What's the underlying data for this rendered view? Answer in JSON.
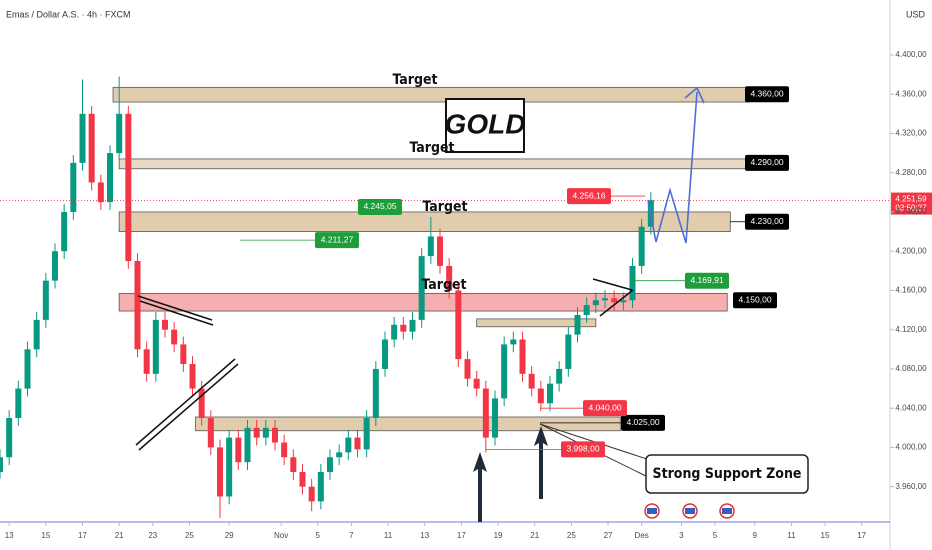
{
  "chart_data": {
    "type": "candlestick",
    "title": "Emas / Dollar A.S. · 4h · FXCM",
    "currency": "USD",
    "up_color": "#089981",
    "down_color": "#f23645",
    "xlim": [
      0,
      288
    ],
    "ylim": [
      3924,
      4456
    ],
    "xticks": [
      {
        "value": 3,
        "label": "13"
      },
      {
        "value": 15,
        "label": "15"
      },
      {
        "value": 27,
        "label": "17"
      },
      {
        "value": 39,
        "label": "21"
      },
      {
        "value": 50,
        "label": "23"
      },
      {
        "value": 62,
        "label": "25"
      },
      {
        "value": 75,
        "label": "29"
      },
      {
        "value": 92,
        "label": "Nov"
      },
      {
        "value": 104,
        "label": "5"
      },
      {
        "value": 115,
        "label": "7"
      },
      {
        "value": 127,
        "label": "11"
      },
      {
        "value": 139,
        "label": "13"
      },
      {
        "value": 151,
        "label": "17"
      },
      {
        "value": 163,
        "label": "19"
      },
      {
        "value": 175,
        "label": "21"
      },
      {
        "value": 187,
        "label": "25"
      },
      {
        "value": 199,
        "label": "27"
      },
      {
        "value": 210,
        "label": "Des"
      },
      {
        "value": 223,
        "label": "3"
      },
      {
        "value": 234,
        "label": "5"
      },
      {
        "value": 247,
        "label": "9"
      },
      {
        "value": 259,
        "label": "11"
      },
      {
        "value": 270,
        "label": "15"
      },
      {
        "value": 282,
        "label": "17"
      }
    ],
    "yticks": [
      {
        "value": 3960,
        "label": "3.960,00"
      },
      {
        "value": 4000,
        "label": "4.000,00"
      },
      {
        "value": 4040,
        "label": "4.040,00"
      },
      {
        "value": 4080,
        "label": "4.080,00"
      },
      {
        "value": 4120,
        "label": "4.120,00"
      },
      {
        "value": 4160,
        "label": "4.160,00"
      },
      {
        "value": 4200,
        "label": "4.200,00"
      },
      {
        "value": 4240,
        "label": "4.240,00"
      },
      {
        "value": 4280,
        "label": "4.280,00"
      },
      {
        "value": 4320,
        "label": "4.320,00"
      },
      {
        "value": 4360,
        "label": "4.360,00"
      },
      {
        "value": 4400,
        "label": "4.400,00"
      }
    ],
    "x": [
      0,
      3,
      6,
      9,
      12,
      15,
      18,
      21,
      24,
      27,
      30,
      33,
      36,
      39,
      42,
      45,
      48,
      51,
      54,
      57,
      60,
      63,
      66,
      69,
      72,
      75,
      78,
      81,
      84,
      87,
      90,
      93,
      96,
      99,
      102,
      105,
      108,
      111,
      114,
      117,
      120,
      123,
      126,
      129,
      132,
      135,
      138,
      141,
      144,
      147,
      150,
      153,
      156,
      159,
      162,
      165,
      168,
      171,
      174,
      177,
      180,
      183,
      186,
      189,
      192,
      195,
      198,
      201,
      204,
      207,
      210,
      213
    ],
    "candles": [
      [
        3975,
        3998,
        3968,
        3990
      ],
      [
        3990,
        4038,
        3982,
        4030
      ],
      [
        4030,
        4068,
        4022,
        4060
      ],
      [
        4060,
        4108,
        4052,
        4100
      ],
      [
        4100,
        4138,
        4092,
        4130
      ],
      [
        4130,
        4178,
        4122,
        4170
      ],
      [
        4170,
        4208,
        4162,
        4200
      ],
      [
        4200,
        4248,
        4192,
        4240
      ],
      [
        4240,
        4298,
        4232,
        4290
      ],
      [
        4290,
        4375,
        4282,
        4340
      ],
      [
        4340,
        4348,
        4262,
        4270
      ],
      [
        4270,
        4278,
        4242,
        4250
      ],
      [
        4250,
        4308,
        4242,
        4300
      ],
      [
        4300,
        4378,
        4292,
        4340
      ],
      [
        4340,
        4348,
        4182,
        4190
      ],
      [
        4190,
        4198,
        4092,
        4100
      ],
      [
        4100,
        4108,
        4067,
        4075
      ],
      [
        4075,
        4138,
        4067,
        4130
      ],
      [
        4130,
        4138,
        4112,
        4120
      ],
      [
        4120,
        4128,
        4097,
        4105
      ],
      [
        4105,
        4113,
        4077,
        4085
      ],
      [
        4085,
        4093,
        4052,
        4060
      ],
      [
        4060,
        4068,
        4022,
        4030
      ],
      [
        4030,
        4038,
        3992,
        4000
      ],
      [
        4000,
        4008,
        3928,
        3950
      ],
      [
        3950,
        4018,
        3942,
        4010
      ],
      [
        4010,
        4018,
        3977,
        3985
      ],
      [
        3985,
        4028,
        3977,
        4020
      ],
      [
        4020,
        4028,
        4002,
        4010
      ],
      [
        4010,
        4028,
        4002,
        4020
      ],
      [
        4020,
        4028,
        3997,
        4005
      ],
      [
        4005,
        4013,
        3982,
        3990
      ],
      [
        3990,
        3998,
        3967,
        3975
      ],
      [
        3975,
        3983,
        3952,
        3960
      ],
      [
        3960,
        3968,
        3935,
        3945
      ],
      [
        3945,
        3983,
        3937,
        3975
      ],
      [
        3975,
        3998,
        3967,
        3990
      ],
      [
        3990,
        4003,
        3982,
        3995
      ],
      [
        3995,
        4018,
        3987,
        4010
      ],
      [
        4010,
        4018,
        3990,
        3998
      ],
      [
        3998,
        4038,
        3990,
        4030
      ],
      [
        4030,
        4088,
        4022,
        4080
      ],
      [
        4080,
        4118,
        4072,
        4110
      ],
      [
        4110,
        4133,
        4102,
        4125
      ],
      [
        4125,
        4133,
        4110,
        4118
      ],
      [
        4118,
        4138,
        4110,
        4130
      ],
      [
        4130,
        4203,
        4122,
        4195
      ],
      [
        4195,
        4235,
        4187,
        4215
      ],
      [
        4215,
        4223,
        4177,
        4185
      ],
      [
        4185,
        4193,
        4152,
        4160
      ],
      [
        4160,
        4168,
        4082,
        4090
      ],
      [
        4090,
        4098,
        4062,
        4070
      ],
      [
        4070,
        4078,
        4052,
        4060
      ],
      [
        4060,
        4068,
        3995,
        4010
      ],
      [
        4010,
        4058,
        4002,
        4050
      ],
      [
        4050,
        4113,
        4042,
        4105
      ],
      [
        4105,
        4118,
        4097,
        4110
      ],
      [
        4110,
        4118,
        4067,
        4075
      ],
      [
        4075,
        4083,
        4052,
        4060
      ],
      [
        4060,
        4068,
        4037,
        4045
      ],
      [
        4045,
        4073,
        4037,
        4065
      ],
      [
        4065,
        4088,
        4057,
        4080
      ],
      [
        4080,
        4123,
        4072,
        4115
      ],
      [
        4115,
        4143,
        4107,
        4135
      ],
      [
        4135,
        4153,
        4127,
        4145
      ],
      [
        4145,
        4158,
        4137,
        4150
      ],
      [
        4150,
        4160,
        4142,
        4152
      ],
      [
        4152,
        4160,
        4140,
        4148
      ],
      [
        4148,
        4158,
        4140,
        4150
      ],
      [
        4150,
        4193,
        4142,
        4185
      ],
      [
        4185,
        4233,
        4177,
        4225
      ],
      [
        4225,
        4260,
        4217,
        4252
      ]
    ],
    "zones": [
      {
        "x": [
          37,
          245
        ],
        "y": [
          4352,
          4367
        ],
        "color": "#dcc3a0"
      },
      {
        "x": [
          39,
          245
        ],
        "y": [
          4284,
          4294
        ],
        "color": "#e6d4bb"
      },
      {
        "x": [
          39,
          239
        ],
        "y": [
          4220,
          4240
        ],
        "color": "#dcc3a0"
      },
      {
        "x": [
          39,
          238
        ],
        "y": [
          4139,
          4157
        ],
        "color": "#f4a0a0"
      },
      {
        "x": [
          64,
          203
        ],
        "y": [
          4017,
          4031
        ],
        "color": "#dcc3a0"
      },
      {
        "x": [
          156,
          195
        ],
        "y": [
          4123,
          4131
        ],
        "color": "#dcc3a0"
      }
    ],
    "price_tags": [
      {
        "label": "4.360,00",
        "value": 4360,
        "color": "#000000"
      },
      {
        "label": "4.290,00",
        "value": 4290,
        "color": "#000000"
      },
      {
        "label": "4.230,00",
        "value": 4230,
        "color": "#000000"
      },
      {
        "label": "4.150,00",
        "value": 4150,
        "color": "#000000"
      },
      {
        "label": "4.025,00",
        "value": 4025,
        "color": "#000000"
      },
      {
        "label": "4.245,05",
        "value": 4245.05,
        "color": "#1e9e3a"
      },
      {
        "label": "4.211,27",
        "value": 4211.27,
        "color": "#1e9e3a"
      },
      {
        "label": "4.169,91",
        "value": 4169.91,
        "color": "#1e9e3a"
      },
      {
        "label": "4.256,16",
        "value": 4256.16,
        "color": "#f23645"
      },
      {
        "label": "4.040,00",
        "value": 4040,
        "color": "#f23645"
      },
      {
        "label": "3.998,00",
        "value": 3998,
        "color": "#f23645"
      }
    ],
    "last_price": {
      "label": "4.251,59",
      "value": 4251.59,
      "countdown": "03:50:27"
    },
    "targets": [
      "Target",
      "Target",
      "Target",
      "Target"
    ],
    "badge": "GOLD",
    "support_note": "Strong Support Zone"
  }
}
